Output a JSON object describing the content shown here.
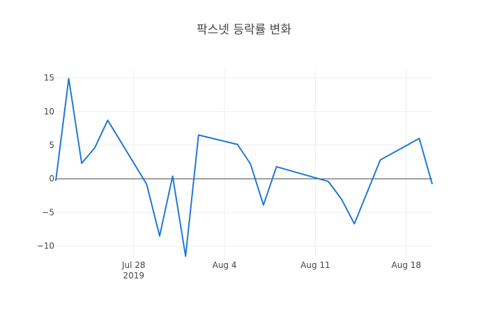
{
  "chart_data": {
    "type": "line",
    "title": "팍스넷 등락률 변화",
    "xlabel": "",
    "ylabel": "",
    "xlim": [
      "2019-07-22",
      "2019-08-20"
    ],
    "ylim": [
      -11.8,
      16.2
    ],
    "yticks": [
      15,
      10,
      5,
      0,
      -5,
      -10
    ],
    "ytick_labels": [
      "15",
      "10",
      "5",
      "0",
      "−5",
      "−10"
    ],
    "xticks": [
      {
        "date": "2019-07-28",
        "label": "Jul 28",
        "sublabel": "2019"
      },
      {
        "date": "2019-08-04",
        "label": "Aug 4",
        "sublabel": ""
      },
      {
        "date": "2019-08-11",
        "label": "Aug 11",
        "sublabel": ""
      },
      {
        "date": "2019-08-18",
        "label": "Aug 18",
        "sublabel": ""
      }
    ],
    "grid": true,
    "line_color": "#1f77d4",
    "series": [
      {
        "x": [
          "2019-07-22",
          "2019-07-23",
          "2019-07-24",
          "2019-07-25",
          "2019-07-26",
          "2019-07-29",
          "2019-07-30",
          "2019-07-31",
          "2019-08-01",
          "2019-08-02",
          "2019-08-05",
          "2019-08-06",
          "2019-08-07",
          "2019-08-08",
          "2019-08-12",
          "2019-08-13",
          "2019-08-14",
          "2019-08-16",
          "2019-08-19",
          "2019-08-20"
        ],
        "y": [
          -0.3,
          14.9,
          2.3,
          4.6,
          8.7,
          -0.8,
          -8.5,
          0.4,
          -11.5,
          6.5,
          5.1,
          2.2,
          -3.9,
          1.8,
          -0.4,
          -3.0,
          -6.7,
          2.8,
          6.0,
          -0.8
        ]
      }
    ]
  }
}
